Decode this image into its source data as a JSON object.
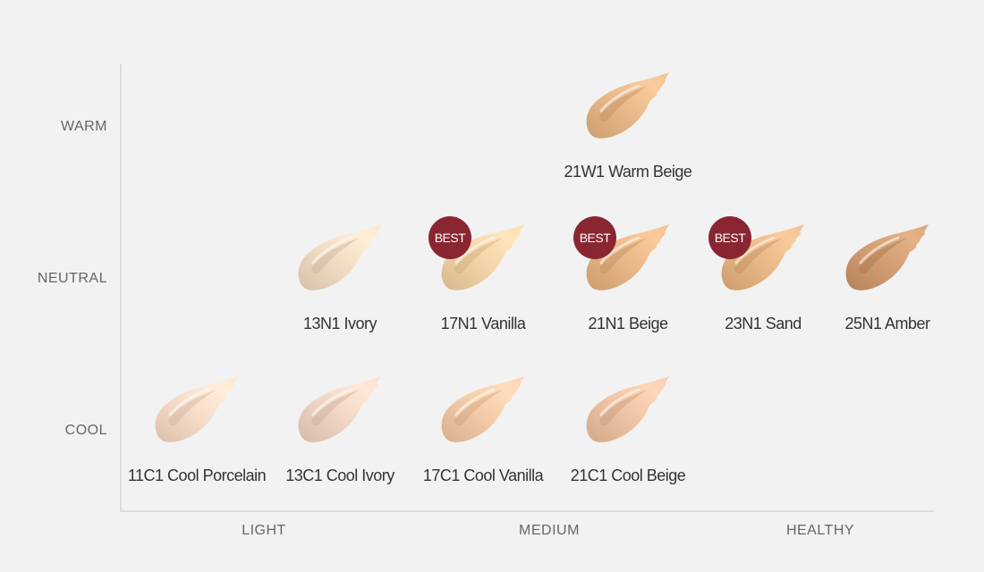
{
  "y_axis": {
    "labels": [
      {
        "key": "warm",
        "label": "WARM"
      },
      {
        "key": "neutral",
        "label": "NEUTRAL"
      },
      {
        "key": "cool",
        "label": "COOL"
      }
    ]
  },
  "x_axis": {
    "labels": [
      {
        "key": "light",
        "label": "LIGHT"
      },
      {
        "key": "medium",
        "label": "MEDIUM"
      },
      {
        "key": "healthy",
        "label": "HEALTHY"
      }
    ]
  },
  "best_badge_text": "BEST",
  "shades": [
    {
      "name": "21W1 Warm Beige",
      "tone": "WARM",
      "color": "#e8b98a",
      "best": false
    },
    {
      "name": "13N1 Ivory",
      "tone": "NEUTRAL",
      "color": "#f1dcc4",
      "best": false
    },
    {
      "name": "17N1 Vanilla",
      "tone": "NEUTRAL",
      "color": "#f3d4a8",
      "best": true
    },
    {
      "name": "21N1 Beige",
      "tone": "NEUTRAL",
      "color": "#e9b889",
      "best": true
    },
    {
      "name": "23N1 Sand",
      "tone": "NEUTRAL",
      "color": "#e9b888",
      "best": true
    },
    {
      "name": "25N1 Amber",
      "tone": "NEUTRAL",
      "color": "#d29e74",
      "best": false
    },
    {
      "name": "11C1 Cool Porcelain",
      "tone": "COOL",
      "color": "#f6dcc9",
      "best": false
    },
    {
      "name": "13C1 Cool Ivory",
      "tone": "COOL",
      "color": "#f1d6c5",
      "best": false
    },
    {
      "name": "17C1 Cool Vanilla",
      "tone": "COOL",
      "color": "#f4cba9",
      "best": false
    },
    {
      "name": "21C1 Cool Beige",
      "tone": "COOL",
      "color": "#efc4a4",
      "best": false
    }
  ]
}
